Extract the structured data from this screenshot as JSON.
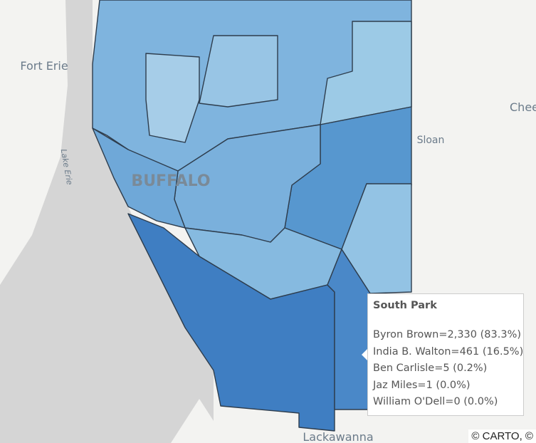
{
  "map": {
    "places": [
      "Fort Erie",
      "Sloan",
      "BUFFALO",
      "Lake Erie",
      "Lackawanna",
      "Chee"
    ]
  },
  "tooltip": {
    "title": "South Park",
    "rows": [
      "Byron Brown=2,330 (83.3%)",
      "India B. Walton=461 (16.5%)",
      "Ben Carlisle=5 (0.2%)",
      "Jaz Miles=1 (0.0%)",
      "William O'Dell=0 (0.0%)"
    ]
  },
  "attribution": "© CARTO, ©"
}
